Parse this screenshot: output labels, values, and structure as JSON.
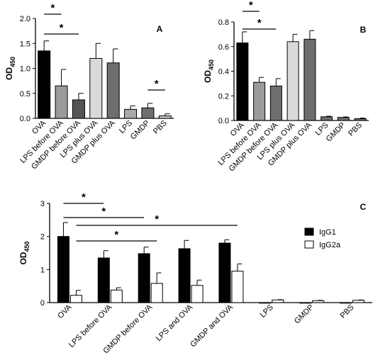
{
  "chart_data": [
    {
      "type": "bar",
      "panel_label": "A",
      "ylabel": "OD",
      "ylabel_sub": "450",
      "ylim": [
        0,
        2
      ],
      "yticks": [
        "0.0",
        "0.5",
        "1.0",
        "1.5",
        "2.0"
      ],
      "categories": [
        "OVA",
        "LPS before OVA",
        "GMDP before OVA",
        "LPS plus OVA",
        "GMDP plus OVA",
        "LPS",
        "GMDP",
        "PBS"
      ],
      "values": [
        1.35,
        0.65,
        0.37,
        1.2,
        1.11,
        0.18,
        0.21,
        0.05
      ],
      "errors": [
        0.2,
        0.33,
        0.13,
        0.3,
        0.28,
        0.07,
        0.09,
        0.04
      ],
      "bar_colors": [
        "#000000",
        "#9a9a9a",
        "#555555",
        "#d9d9d9",
        "#6e6e6e",
        "#a8a8a8",
        "#6e6e6e",
        "#c8c8c8"
      ],
      "significance": [
        {
          "from": 0,
          "to": 1,
          "label": "*"
        },
        {
          "from": 0,
          "to": 2,
          "label": "*"
        },
        {
          "from": 6,
          "to": 7,
          "label": "*"
        }
      ]
    },
    {
      "type": "bar",
      "panel_label": "B",
      "ylabel": "OD",
      "ylabel_sub": "450",
      "ylim": [
        0,
        0.8
      ],
      "yticks": [
        "0.0",
        "0.2",
        "0.4",
        "0.6",
        "0.8"
      ],
      "categories": [
        "OVA",
        "LPS before OVA",
        "GMDP before OVA",
        "LPS plus OVA",
        "GMDP plus OVA",
        "LPS",
        "GMDP",
        "PBS"
      ],
      "values": [
        0.63,
        0.31,
        0.28,
        0.64,
        0.66,
        0.03,
        0.025,
        0.015
      ],
      "errors": [
        0.09,
        0.04,
        0.06,
        0.06,
        0.07,
        0.005,
        0.004,
        0.005
      ],
      "bar_colors": [
        "#000000",
        "#9a9a9a",
        "#6e6e6e",
        "#d9d9d9",
        "#6e6e6e",
        "#6e6e6e",
        "#6e6e6e",
        "#6e6e6e"
      ],
      "significance": [
        {
          "from": 0,
          "to": 1,
          "label": "*"
        },
        {
          "from": 0,
          "to": 2,
          "label": "*"
        }
      ]
    },
    {
      "type": "bar",
      "panel_label": "C",
      "ylabel": "OD",
      "ylabel_sub": "450",
      "ylim": [
        0,
        3
      ],
      "yticks": [
        "0",
        "1",
        "2",
        "3"
      ],
      "categories": [
        "OVA",
        "LPS before OVA",
        "GMDP before OVA",
        "LPS and OVA",
        "GMDP and OVA",
        "LPS",
        "GMDP",
        "PBS"
      ],
      "series": [
        {
          "name": "IgG1",
          "color": "#000000",
          "values": [
            2.0,
            1.35,
            1.48,
            1.63,
            1.8,
            0,
            0,
            0
          ],
          "errors": [
            0.42,
            0.22,
            0.2,
            0.25,
            0.1,
            0,
            0,
            0
          ]
        },
        {
          "name": "IgG2a",
          "color": "#ffffff",
          "values": [
            0.22,
            0.38,
            0.58,
            0.52,
            0.95,
            0.08,
            0.06,
            0.07
          ],
          "errors": [
            0.15,
            0.07,
            0.32,
            0.16,
            0.22,
            0.01,
            0.01,
            0.01
          ]
        }
      ],
      "legend": "right",
      "significance": [
        {
          "from": 0,
          "to": 1,
          "series": "IgG1",
          "label": "*"
        },
        {
          "from": 0,
          "to": 2,
          "series": "IgG1",
          "label": "*"
        },
        {
          "from": 0,
          "to": 2,
          "series": "IgG2a",
          "label": "*"
        },
        {
          "from": 0,
          "to": 4,
          "series": "IgG2a",
          "label": "*"
        }
      ]
    }
  ]
}
